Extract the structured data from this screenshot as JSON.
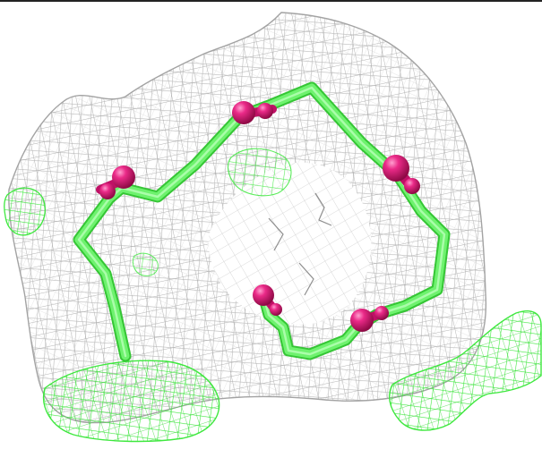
{
  "viewer": {
    "background_color": "#ffffff",
    "frame_color": "#222222"
  },
  "scene": {
    "mesh_main_color": "#b4b4b4",
    "mesh_secondary_color": "#9a9a9a",
    "mesh_green_color": "#3fe83f",
    "backbone_color": "#66ef66",
    "backbone_edge_color": "#35c635",
    "atom_color": "#e0157a",
    "atom_dark_color": "#9c0c4c",
    "atom_highlight_color": "#ff7fbf"
  }
}
